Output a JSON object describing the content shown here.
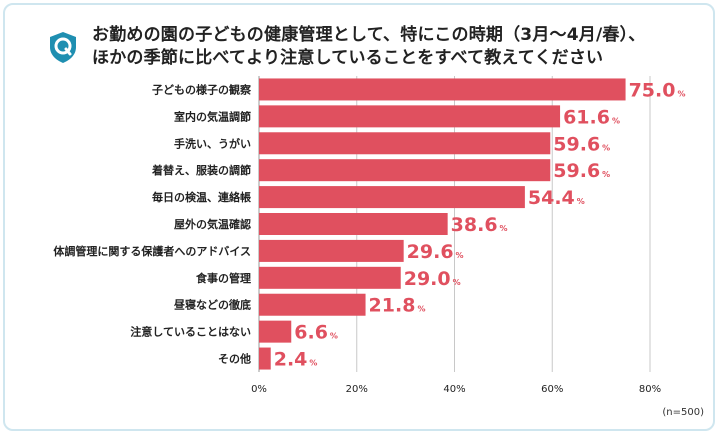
{
  "title_lines": [
    "お勤めの園の子どもの健康管理として、特にこの時期（3月〜4月/春）、",
    "ほかの季節に比べてより注意していることをすべて教えてください"
  ],
  "sample_note": "(n=500)",
  "logo": {
    "icon": "q-shield-logo-icon",
    "letter": "Q",
    "color": "#1f8fb1"
  },
  "colors": {
    "bar": "#e0505f",
    "label": "#e0505f",
    "grid": "#c8c8c8",
    "text": "#222222"
  },
  "chart_data": {
    "type": "bar",
    "orientation": "horizontal",
    "categories": [
      "子どもの様子の観察",
      "室内の気温調節",
      "手洗い、うがい",
      "着替え、服装の調節",
      "毎日の検温、連絡帳",
      "屋外の気温確認",
      "体調管理に関する保護者へのアドバイス",
      "食事の管理",
      "昼寝などの徹底",
      "注意していることはない",
      "その他"
    ],
    "values": [
      75.0,
      61.6,
      59.6,
      59.6,
      54.4,
      38.6,
      29.6,
      29.0,
      21.8,
      6.6,
      2.4
    ],
    "value_unit": "%",
    "xlim": [
      0,
      80
    ],
    "xticks": [
      0,
      20,
      40,
      60,
      80
    ],
    "xtick_labels": [
      "0%",
      "20%",
      "40%",
      "60%",
      "80%"
    ],
    "grid": true
  }
}
